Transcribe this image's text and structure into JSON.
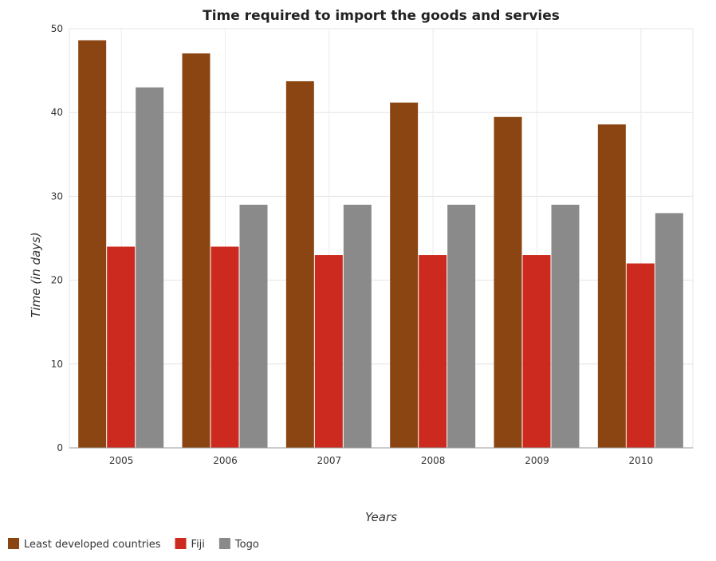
{
  "chart_data": {
    "type": "bar",
    "title": "Time required to import the goods and servies",
    "xlabel": "Years",
    "ylabel": "Time (in days)",
    "categories": [
      "2005",
      "2006",
      "2007",
      "2008",
      "2009",
      "2010"
    ],
    "series": [
      {
        "name": "Least developed countries",
        "color": "#8B4513",
        "values": [
          48.62,
          47.05,
          43.73,
          41.19,
          39.47,
          38.58
        ]
      },
      {
        "name": "Fiji",
        "color": "#cc2a1e",
        "values": [
          24,
          24,
          23,
          23,
          23,
          22
        ]
      },
      {
        "name": "Togo",
        "color": "#8a8a8a",
        "values": [
          43,
          29,
          29,
          29,
          29,
          28
        ]
      }
    ],
    "ylim": [
      0,
      50
    ],
    "yticks": [
      0,
      10,
      20,
      30,
      40,
      50
    ],
    "grid": true,
    "legend_position": "bottom-left"
  }
}
